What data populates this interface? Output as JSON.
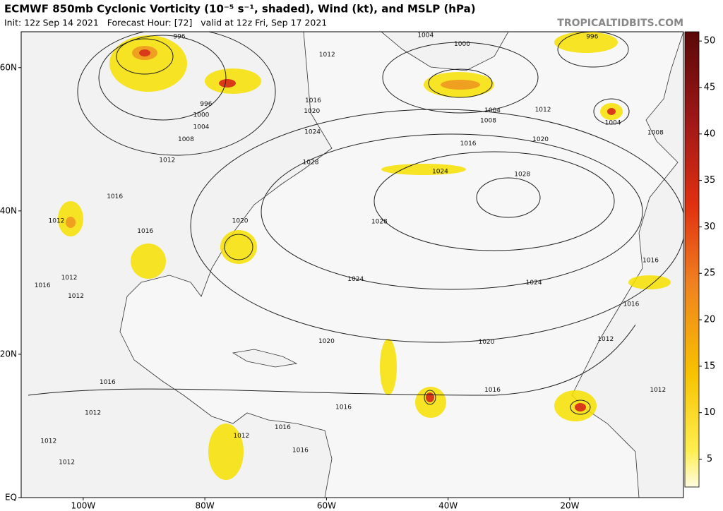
{
  "map": {
    "title": "ECMWF 850mb Cyclonic Vorticity (10⁻⁵ s⁻¹, shaded), Wind (kt), and MSLP (hPa)",
    "subtitle": "Init: 12z Sep 14 2021   Forecast Hour: [72]   valid at 12z Fri, Sep 17 2021",
    "source": "TROPICALTIDBITS.COM",
    "xlim": [
      -110.2,
      -1.3
    ],
    "ylim": [
      0,
      65
    ],
    "lat_ticks": [
      {
        "value": 60,
        "label": "60N"
      },
      {
        "value": 40,
        "label": "40N"
      },
      {
        "value": 20,
        "label": "20N"
      },
      {
        "value": 0,
        "label": "EQ"
      }
    ],
    "lon_ticks": [
      {
        "value": -100,
        "label": "100W"
      },
      {
        "value": -80,
        "label": "80W"
      },
      {
        "value": -60,
        "label": "60W"
      },
      {
        "value": -40,
        "label": "40W"
      },
      {
        "value": -20,
        "label": "20W"
      }
    ],
    "colorbar": {
      "lim": [
        2,
        51
      ],
      "ticks": [
        5,
        10,
        15,
        20,
        25,
        30,
        35,
        40,
        45,
        50
      ]
    },
    "isobar_labels": [
      {
        "label": "996",
        "lon": -84.2,
        "lat": 64.3
      },
      {
        "label": "1004",
        "lon": -43.7,
        "lat": 64.5
      },
      {
        "label": "1000",
        "lon": -37.7,
        "lat": 63.3
      },
      {
        "label": "996",
        "lon": -16.3,
        "lat": 64.3
      },
      {
        "label": "1012",
        "lon": -59.9,
        "lat": 61.8
      },
      {
        "label": "996",
        "lon": -79.8,
        "lat": 54.9
      },
      {
        "label": "1000",
        "lon": -80.6,
        "lat": 53.4
      },
      {
        "label": "1004",
        "lon": -80.6,
        "lat": 51.7
      },
      {
        "label": "1008",
        "lon": -83.1,
        "lat": 50.0
      },
      {
        "label": "1012",
        "lon": -86.2,
        "lat": 47.1
      },
      {
        "label": "1016",
        "lon": -62.2,
        "lat": 55.4
      },
      {
        "label": "1020",
        "lon": -62.4,
        "lat": 53.9
      },
      {
        "label": "1024",
        "lon": -62.3,
        "lat": 51.0
      },
      {
        "label": "1028",
        "lon": -62.6,
        "lat": 46.8
      },
      {
        "label": "1004",
        "lon": -32.7,
        "lat": 54.0
      },
      {
        "label": "1008",
        "lon": -33.4,
        "lat": 52.6
      },
      {
        "label": "1012",
        "lon": -24.4,
        "lat": 54.1
      },
      {
        "label": "1016",
        "lon": -36.7,
        "lat": 49.4
      },
      {
        "label": "1020",
        "lon": -24.8,
        "lat": 50.0
      },
      {
        "label": "1024",
        "lon": -41.3,
        "lat": 45.5
      },
      {
        "label": "1028",
        "lon": -27.8,
        "lat": 45.1
      },
      {
        "label": "1004",
        "lon": -12.9,
        "lat": 52.3
      },
      {
        "label": "1008",
        "lon": -5.9,
        "lat": 50.9
      },
      {
        "label": "1016",
        "lon": -94.8,
        "lat": 42.0
      },
      {
        "label": "1012",
        "lon": -104.4,
        "lat": 38.6
      },
      {
        "label": "1016",
        "lon": -89.8,
        "lat": 37.2
      },
      {
        "label": "1020",
        "lon": -74.2,
        "lat": 38.6
      },
      {
        "label": "1028",
        "lon": -51.3,
        "lat": 38.5
      },
      {
        "label": "1024",
        "lon": -55.2,
        "lat": 30.5
      },
      {
        "label": "1024",
        "lon": -25.9,
        "lat": 30.0
      },
      {
        "label": "1016",
        "lon": -6.7,
        "lat": 33.1
      },
      {
        "label": "1016",
        "lon": -9.9,
        "lat": 27.0
      },
      {
        "label": "1012",
        "lon": -102.3,
        "lat": 30.7
      },
      {
        "label": "1016",
        "lon": -106.7,
        "lat": 29.6
      },
      {
        "label": "1012",
        "lon": -101.2,
        "lat": 28.1
      },
      {
        "label": "1020",
        "lon": -60.0,
        "lat": 21.8
      },
      {
        "label": "1020",
        "lon": -33.7,
        "lat": 21.7
      },
      {
        "label": "1012",
        "lon": -14.1,
        "lat": 22.1
      },
      {
        "label": "1016",
        "lon": -96.0,
        "lat": 16.1
      },
      {
        "label": "1016",
        "lon": -32.7,
        "lat": 15.0
      },
      {
        "label": "1016",
        "lon": -57.2,
        "lat": 12.6
      },
      {
        "label": "1012",
        "lon": -5.5,
        "lat": 15.0
      },
      {
        "label": "1012",
        "lon": -98.4,
        "lat": 11.8
      },
      {
        "label": "1016",
        "lon": -67.2,
        "lat": 9.8
      },
      {
        "label": "1012",
        "lon": -105.7,
        "lat": 7.9
      },
      {
        "label": "1016",
        "lon": -64.3,
        "lat": 6.6
      },
      {
        "label": "1012",
        "lon": -102.7,
        "lat": 4.9
      },
      {
        "label": "1012",
        "lon": -74.0,
        "lat": 8.6
      }
    ]
  }
}
